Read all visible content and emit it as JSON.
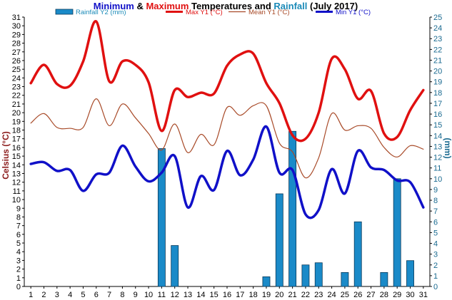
{
  "chart_data": {
    "type": "line",
    "title": {
      "parts": [
        {
          "text": "Minimum",
          "color": "#1010c8"
        },
        {
          "text": " & ",
          "color": "#000000"
        },
        {
          "text": "Maximum",
          "color": "#e01010"
        },
        {
          "text": " Temperatures and ",
          "color": "#000000"
        },
        {
          "text": "Rainfall",
          "color": "#1a8ab8"
        },
        {
          "text": " (July 2017)",
          "color": "#000000"
        }
      ]
    },
    "ylabel_left": "Celsius (°C)",
    "ylabel_right": "(mm)",
    "ylim_left": [
      0,
      31
    ],
    "ylim_right": [
      0,
      25
    ],
    "x": [
      1,
      2,
      3,
      4,
      5,
      6,
      7,
      8,
      9,
      10,
      11,
      12,
      13,
      14,
      15,
      16,
      17,
      18,
      19,
      20,
      21,
      22,
      23,
      24,
      25,
      26,
      27,
      28,
      29,
      30,
      31
    ],
    "grid": false,
    "legend_position": "top",
    "series": [
      {
        "name": "Rainfall Y2 (mm)",
        "kind": "bar",
        "axis": "right",
        "color": "#1a8ac8",
        "legend_color": "#1a8ab8",
        "values": [
          0,
          0,
          0,
          0,
          0,
          0,
          0,
          0,
          0,
          0,
          12.8,
          3.8,
          0,
          0,
          0,
          0,
          0,
          0,
          0.9,
          8.6,
          14.4,
          2,
          2.2,
          0,
          1.3,
          6,
          0,
          1.3,
          10,
          2.4,
          0
        ]
      },
      {
        "name": "Max Y1 (°C)",
        "kind": "line",
        "axis": "left",
        "color": "#e01010",
        "width": 3.5,
        "values": [
          23.4,
          25.5,
          23.3,
          23.1,
          25.9,
          30.5,
          23.6,
          25.9,
          25.5,
          23.5,
          17.9,
          22.6,
          21.8,
          22.3,
          22.2,
          25.4,
          26.7,
          26.8,
          23.4,
          21.1,
          17.4,
          17,
          20,
          26.2,
          25,
          21.6,
          22.5,
          17.6,
          17.2,
          20.3,
          22.6
        ]
      },
      {
        "name": "Mean Y1 (°C)",
        "kind": "line",
        "axis": "left",
        "color": "#a84a28",
        "width": 1.2,
        "values": [
          18.8,
          19.9,
          18.3,
          18.2,
          18.3,
          21.6,
          18.5,
          21,
          19.4,
          17.6,
          15.7,
          18.7,
          15.4,
          17.5,
          16.3,
          20.6,
          19.7,
          20.8,
          20.8,
          16.5,
          15.5,
          12.5,
          14.8,
          19.9,
          18,
          18.5,
          18.2,
          16,
          14.9,
          16.2,
          15.8
        ]
      },
      {
        "name": "Min Y1 (°C)",
        "kind": "line",
        "axis": "left",
        "color": "#1010c8",
        "width": 3.5,
        "values": [
          14.1,
          14.3,
          13.3,
          13.4,
          11,
          12.9,
          13.1,
          16.2,
          13.8,
          12.1,
          13.1,
          15,
          9.1,
          12.7,
          11.1,
          15.6,
          12.8,
          14.6,
          18.4,
          13.1,
          13.4,
          8.3,
          8.8,
          13.5,
          10.7,
          15.6,
          13.7,
          13.4,
          12.2,
          12,
          9.1
        ]
      }
    ]
  }
}
